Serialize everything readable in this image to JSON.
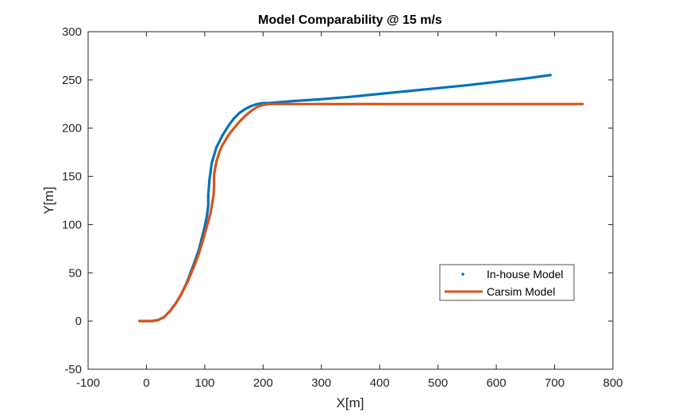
{
  "chart_data": {
    "type": "line",
    "title": "Model Comparability @ 15 m/s",
    "xlabel": "X[m]",
    "ylabel": "Y[m]",
    "xlim": [
      -100,
      800
    ],
    "ylim": [
      -50,
      300
    ],
    "xticks": [
      "-100",
      "0",
      "100",
      "200",
      "300",
      "400",
      "500",
      "600",
      "700",
      "800"
    ],
    "yticks": [
      "-50",
      "0",
      "50",
      "100",
      "150",
      "200",
      "250",
      "300"
    ],
    "grid": false,
    "legend_position": "lower-right",
    "series": [
      {
        "name": "In-house Model",
        "color": "#0072BD",
        "marker": "dot",
        "x": [
          -12,
          0,
          10,
          20,
          30,
          40,
          50,
          60,
          70,
          80,
          90,
          100,
          104,
          106,
          106,
          108,
          112,
          120,
          130,
          140,
          150,
          160,
          170,
          180,
          190,
          200,
          210,
          250,
          300,
          350,
          400,
          450,
          500,
          550,
          600,
          650,
          693
        ],
        "y": [
          0,
          0,
          0,
          1,
          4,
          10,
          18,
          28,
          41,
          57,
          74,
          98,
          110,
          120,
          130,
          146,
          164,
          180,
          192,
          202,
          210,
          216,
          220,
          223,
          225,
          226,
          226,
          228,
          230,
          232.5,
          235.5,
          238.5,
          241.5,
          244.5,
          248,
          251.5,
          255
        ]
      },
      {
        "name": "Carsim Model",
        "color": "#D95319",
        "marker": "line",
        "x": [
          -12,
          0,
          10,
          20,
          30,
          40,
          50,
          60,
          70,
          80,
          90,
          100,
          110,
          115,
          116,
          116,
          120,
          125,
          130,
          140,
          150,
          160,
          170,
          180,
          190,
          200,
          210,
          220,
          300,
          400,
          500,
          600,
          700,
          748
        ],
        "y": [
          0,
          0,
          0,
          1,
          4,
          10,
          18,
          28,
          40,
          54,
          70,
          90,
          112,
          130,
          140,
          152,
          165,
          175,
          182,
          192,
          200,
          207,
          213,
          218,
          222,
          224,
          225,
          225,
          225,
          225,
          225,
          225,
          225,
          225
        ]
      }
    ]
  }
}
